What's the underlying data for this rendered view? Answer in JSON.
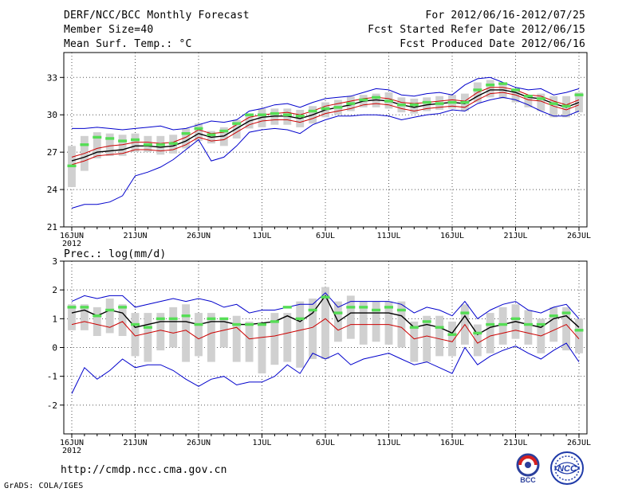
{
  "header": {
    "title": "DERF/NCC/BCC Monthly Forecast",
    "member_size": "Member Size=40",
    "variable": "Mean Surf. Temp.: °C",
    "period": "For 2012/06/16-2012/07/25",
    "fcst_started": "Fcst Started Refer Date 2012/06/15",
    "fcst_produced": "Fcst Produced Date 2012/06/16"
  },
  "footer": {
    "url": "http://cmdp.ncc.cma.gov.cn",
    "grads": "GrADS: COLA/IGES"
  },
  "logos": {
    "bcc": "BCC",
    "ncc": "NCC"
  },
  "colors": {
    "ensemble_mean": "#000000",
    "median": "#cc0000",
    "spread_bounds": "#0000cc",
    "highlight": "#55dd55",
    "box": "#d0d0d0",
    "grid": "#555555"
  },
  "chart_data": [
    {
      "type": "line",
      "title": "Mean Surf. Temp.: °C",
      "xlabel": "",
      "ylabel": "°C",
      "x_range": [
        0,
        40
      ],
      "ylim": [
        21,
        35
      ],
      "yticks": [
        21,
        24,
        27,
        30,
        33
      ],
      "xticks": [
        {
          "day": 0,
          "label": "16JUN"
        },
        {
          "day": 5,
          "label": "21JUN"
        },
        {
          "day": 10,
          "label": "26JUN"
        },
        {
          "day": 15,
          "label": "1JUL"
        },
        {
          "day": 20,
          "label": "6JUL"
        },
        {
          "day": 25,
          "label": "11JUL"
        },
        {
          "day": 30,
          "label": "16JUL"
        },
        {
          "day": 35,
          "label": "21JUL"
        },
        {
          "day": 40,
          "label": "26JUL"
        }
      ],
      "x_year_label": "2012",
      "grid": true,
      "series": [
        {
          "name": "upper",
          "color": "#0000cc",
          "values": [
            28.9,
            28.9,
            29.0,
            28.9,
            28.8,
            28.9,
            29.0,
            29.1,
            28.8,
            28.9,
            29.2,
            29.5,
            29.4,
            29.6,
            30.3,
            30.5,
            30.8,
            30.9,
            30.6,
            31.0,
            31.3,
            31.4,
            31.5,
            31.8,
            32.1,
            32.0,
            31.6,
            31.5,
            31.7,
            31.8,
            31.6,
            32.4,
            32.9,
            33.0,
            32.6,
            32.2,
            32.0,
            32.1,
            31.6,
            31.8,
            32.1
          ]
        },
        {
          "name": "ensemble_mean",
          "color": "#000000",
          "values": [
            26.3,
            26.6,
            27.0,
            27.1,
            27.2,
            27.5,
            27.5,
            27.4,
            27.5,
            27.9,
            28.5,
            28.2,
            28.3,
            28.9,
            29.5,
            29.8,
            29.9,
            29.9,
            29.7,
            30.0,
            30.4,
            30.6,
            30.8,
            31.1,
            31.2,
            31.1,
            30.8,
            30.6,
            30.8,
            30.9,
            31.0,
            30.9,
            31.5,
            32.0,
            32.0,
            31.8,
            31.4,
            31.3,
            30.9,
            30.6,
            31.0
          ]
        },
        {
          "name": "upper_mid",
          "color": "#cc0000",
          "values": [
            26.6,
            26.9,
            27.3,
            27.5,
            27.6,
            27.8,
            27.8,
            27.7,
            27.8,
            28.2,
            28.8,
            28.5,
            28.6,
            29.2,
            29.8,
            30.0,
            30.1,
            30.2,
            30.0,
            30.3,
            30.7,
            30.9,
            31.1,
            31.3,
            31.4,
            31.3,
            31.0,
            30.9,
            31.0,
            31.1,
            31.2,
            31.1,
            31.8,
            32.2,
            32.2,
            32.0,
            31.6,
            31.5,
            31.1,
            30.8,
            31.2
          ]
        },
        {
          "name": "lower_mid",
          "color": "#cc0000",
          "values": [
            26.0,
            26.3,
            26.7,
            26.8,
            26.9,
            27.2,
            27.2,
            27.1,
            27.2,
            27.6,
            28.2,
            27.9,
            28.0,
            28.6,
            29.2,
            29.5,
            29.6,
            29.6,
            29.4,
            29.7,
            30.1,
            30.3,
            30.5,
            30.8,
            30.9,
            30.8,
            30.5,
            30.3,
            30.5,
            30.6,
            30.7,
            30.6,
            31.2,
            31.7,
            31.8,
            31.6,
            31.2,
            31.1,
            30.7,
            30.4,
            30.8
          ]
        },
        {
          "name": "lower",
          "color": "#0000cc",
          "values": [
            22.5,
            22.8,
            22.8,
            23.0,
            23.5,
            25.1,
            25.4,
            25.8,
            26.4,
            27.2,
            28.0,
            26.3,
            26.6,
            27.5,
            28.6,
            28.8,
            28.9,
            28.8,
            28.5,
            29.2,
            29.6,
            29.9,
            29.9,
            30.0,
            30.0,
            29.9,
            29.6,
            29.8,
            30.0,
            30.1,
            30.4,
            30.3,
            30.9,
            31.2,
            31.4,
            31.2,
            30.8,
            30.3,
            29.9,
            29.9,
            30.3
          ]
        }
      ],
      "boxes": [
        [
          24.2,
          27.5
        ],
        [
          25.5,
          28.3
        ],
        [
          26.5,
          28.6
        ],
        [
          26.7,
          28.5
        ],
        [
          26.7,
          28.4
        ],
        [
          27.0,
          28.5
        ],
        [
          27.0,
          28.3
        ],
        [
          26.8,
          28.3
        ],
        [
          26.9,
          28.4
        ],
        [
          27.3,
          28.9
        ],
        [
          27.9,
          29.3
        ],
        [
          27.7,
          28.7
        ],
        [
          27.5,
          29.0
        ],
        [
          28.1,
          29.6
        ],
        [
          28.9,
          30.0
        ],
        [
          29.0,
          30.5
        ],
        [
          29.2,
          30.5
        ],
        [
          29.2,
          30.5
        ],
        [
          29.0,
          30.4
        ],
        [
          29.3,
          30.7
        ],
        [
          29.8,
          31.0
        ],
        [
          30.0,
          31.2
        ],
        [
          30.3,
          31.5
        ],
        [
          30.6,
          31.6
        ],
        [
          30.6,
          31.7
        ],
        [
          30.5,
          31.8
        ],
        [
          30.2,
          31.4
        ],
        [
          30.1,
          31.3
        ],
        [
          30.3,
          31.4
        ],
        [
          30.4,
          31.5
        ],
        [
          30.5,
          31.6
        ],
        [
          30.3,
          31.7
        ],
        [
          31.0,
          32.6
        ],
        [
          31.4,
          32.8
        ],
        [
          31.3,
          32.5
        ],
        [
          31.0,
          32.1
        ],
        [
          30.6,
          31.6
        ],
        [
          30.3,
          31.7
        ],
        [
          29.8,
          31.5
        ],
        [
          29.8,
          31.5
        ],
        [
          30.2,
          31.8
        ]
      ],
      "highlight": [
        25.9,
        27.6,
        28.2,
        28.1,
        27.9,
        28.0,
        27.6,
        27.6,
        27.7,
        28.5,
        28.9,
        28.4,
        28.7,
        29.3,
        30.0,
        30.0,
        30.1,
        30.0,
        29.9,
        30.3,
        30.5,
        30.6,
        30.9,
        31.2,
        31.4,
        31.1,
        30.8,
        30.8,
        31.0,
        30.9,
        31.0,
        31.0,
        32.0,
        32.4,
        32.5,
        32.0,
        31.5,
        31.3,
        30.9,
        30.7,
        31.6
      ]
    },
    {
      "type": "line",
      "title": "Prec.: log(mm/d)",
      "xlabel": "",
      "ylabel": "log(mm/d)",
      "x_range": [
        0,
        40
      ],
      "ylim": [
        -3,
        3
      ],
      "yticks": [
        -2,
        -1,
        0,
        1,
        2,
        3
      ],
      "xticks": [
        {
          "day": 0,
          "label": "16JUN"
        },
        {
          "day": 5,
          "label": "21JUN"
        },
        {
          "day": 10,
          "label": "26JUN"
        },
        {
          "day": 15,
          "label": "1JUL"
        },
        {
          "day": 20,
          "label": "6JUL"
        },
        {
          "day": 25,
          "label": "11JUL"
        },
        {
          "day": 30,
          "label": "16JUL"
        },
        {
          "day": 35,
          "label": "21JUL"
        },
        {
          "day": 40,
          "label": "26JUL"
        }
      ],
      "x_year_label": "2012",
      "grid": true,
      "series": [
        {
          "name": "upper",
          "color": "#0000cc",
          "values": [
            1.6,
            1.8,
            1.7,
            1.8,
            1.8,
            1.4,
            1.5,
            1.6,
            1.7,
            1.6,
            1.7,
            1.6,
            1.4,
            1.5,
            1.2,
            1.3,
            1.3,
            1.4,
            1.5,
            1.5,
            1.9,
            1.4,
            1.6,
            1.6,
            1.6,
            1.6,
            1.5,
            1.2,
            1.4,
            1.3,
            1.1,
            1.6,
            1.0,
            1.3,
            1.5,
            1.6,
            1.3,
            1.2,
            1.4,
            1.5,
            1.0
          ]
        },
        {
          "name": "ensemble_mean",
          "color": "#000000",
          "values": [
            1.2,
            1.3,
            1.1,
            1.3,
            1.2,
            0.7,
            0.8,
            0.9,
            0.9,
            0.9,
            0.8,
            0.9,
            0.9,
            0.8,
            0.8,
            0.85,
            0.9,
            1.1,
            0.9,
            1.2,
            1.8,
            0.9,
            1.2,
            1.2,
            1.2,
            1.2,
            1.1,
            0.7,
            0.8,
            0.7,
            0.5,
            1.1,
            0.45,
            0.7,
            0.8,
            0.9,
            0.8,
            0.7,
            1.0,
            1.1,
            0.7
          ]
        },
        {
          "name": "mid",
          "color": "#cc0000",
          "values": [
            0.8,
            0.9,
            0.8,
            0.7,
            0.9,
            0.4,
            0.5,
            0.6,
            0.5,
            0.6,
            0.3,
            0.5,
            0.6,
            0.7,
            0.3,
            0.35,
            0.4,
            0.5,
            0.6,
            0.7,
            1.0,
            0.6,
            0.8,
            0.8,
            0.8,
            0.8,
            0.7,
            0.3,
            0.4,
            0.3,
            0.2,
            0.8,
            0.15,
            0.4,
            0.5,
            0.6,
            0.5,
            0.4,
            0.6,
            0.8,
            0.3
          ]
        },
        {
          "name": "lower",
          "color": "#0000cc",
          "values": [
            -1.6,
            -0.7,
            -1.1,
            -0.8,
            -0.4,
            -0.7,
            -0.6,
            -0.6,
            -0.8,
            -1.1,
            -1.35,
            -1.1,
            -1.0,
            -1.3,
            -1.2,
            -1.2,
            -1.0,
            -0.6,
            -0.9,
            -0.2,
            -0.4,
            -0.2,
            -0.6,
            -0.4,
            -0.3,
            -0.2,
            -0.4,
            -0.6,
            -0.5,
            -0.7,
            -0.9,
            0.0,
            -0.6,
            -0.3,
            -0.1,
            0.05,
            -0.2,
            -0.4,
            -0.1,
            0.15,
            -0.5
          ]
        },
        {
          "name": "highlight",
          "color": "#55dd55",
          "values": [
            1.4,
            1.4,
            1.1,
            1.3,
            1.4,
            0.8,
            0.7,
            1.0,
            1.0,
            1.1,
            0.8,
            1.0,
            1.0,
            0.8,
            0.8,
            0.8,
            0.9,
            1.4,
            1.0,
            1.3,
            1.75,
            1.2,
            1.4,
            1.4,
            1.3,
            1.4,
            1.3,
            0.7,
            0.9,
            0.7,
            0.45,
            1.2,
            0.5,
            0.8,
            0.8,
            1.0,
            0.8,
            0.8,
            1.1,
            1.2,
            0.6
          ]
        }
      ],
      "boxes": [
        [
          0.6,
          1.5
        ],
        [
          0.6,
          1.5
        ],
        [
          0.4,
          1.4
        ],
        [
          0.5,
          1.7
        ],
        [
          0.4,
          1.5
        ],
        [
          -0.3,
          1.2
        ],
        [
          -0.5,
          1.2
        ],
        [
          -0.1,
          1.2
        ],
        [
          0.0,
          1.4
        ],
        [
          -0.5,
          1.5
        ],
        [
          -0.3,
          1.2
        ],
        [
          -0.5,
          1.2
        ],
        [
          0.0,
          1.0
        ],
        [
          -0.5,
          1.1
        ],
        [
          -0.5,
          0.9
        ],
        [
          -0.9,
          0.8
        ],
        [
          -0.6,
          1.2
        ],
        [
          -0.5,
          1.2
        ],
        [
          -0.7,
          1.6
        ],
        [
          -0.4,
          1.7
        ],
        [
          -0.4,
          2.1
        ],
        [
          0.2,
          1.6
        ],
        [
          0.3,
          1.8
        ],
        [
          0.1,
          1.6
        ],
        [
          0.2,
          1.6
        ],
        [
          0.1,
          1.6
        ],
        [
          0.0,
          1.6
        ],
        [
          -0.5,
          0.9
        ],
        [
          -0.5,
          1.1
        ],
        [
          -0.3,
          1.1
        ],
        [
          -0.3,
          0.9
        ],
        [
          0.1,
          1.5
        ],
        [
          -0.3,
          0.8
        ],
        [
          -0.2,
          1.2
        ],
        [
          0.1,
          1.4
        ],
        [
          0.3,
          1.5
        ],
        [
          0.1,
          1.3
        ],
        [
          -0.2,
          1.0
        ],
        [
          0.2,
          1.4
        ],
        [
          -0.1,
          1.4
        ],
        [
          -0.2,
          1.0
        ]
      ]
    }
  ]
}
